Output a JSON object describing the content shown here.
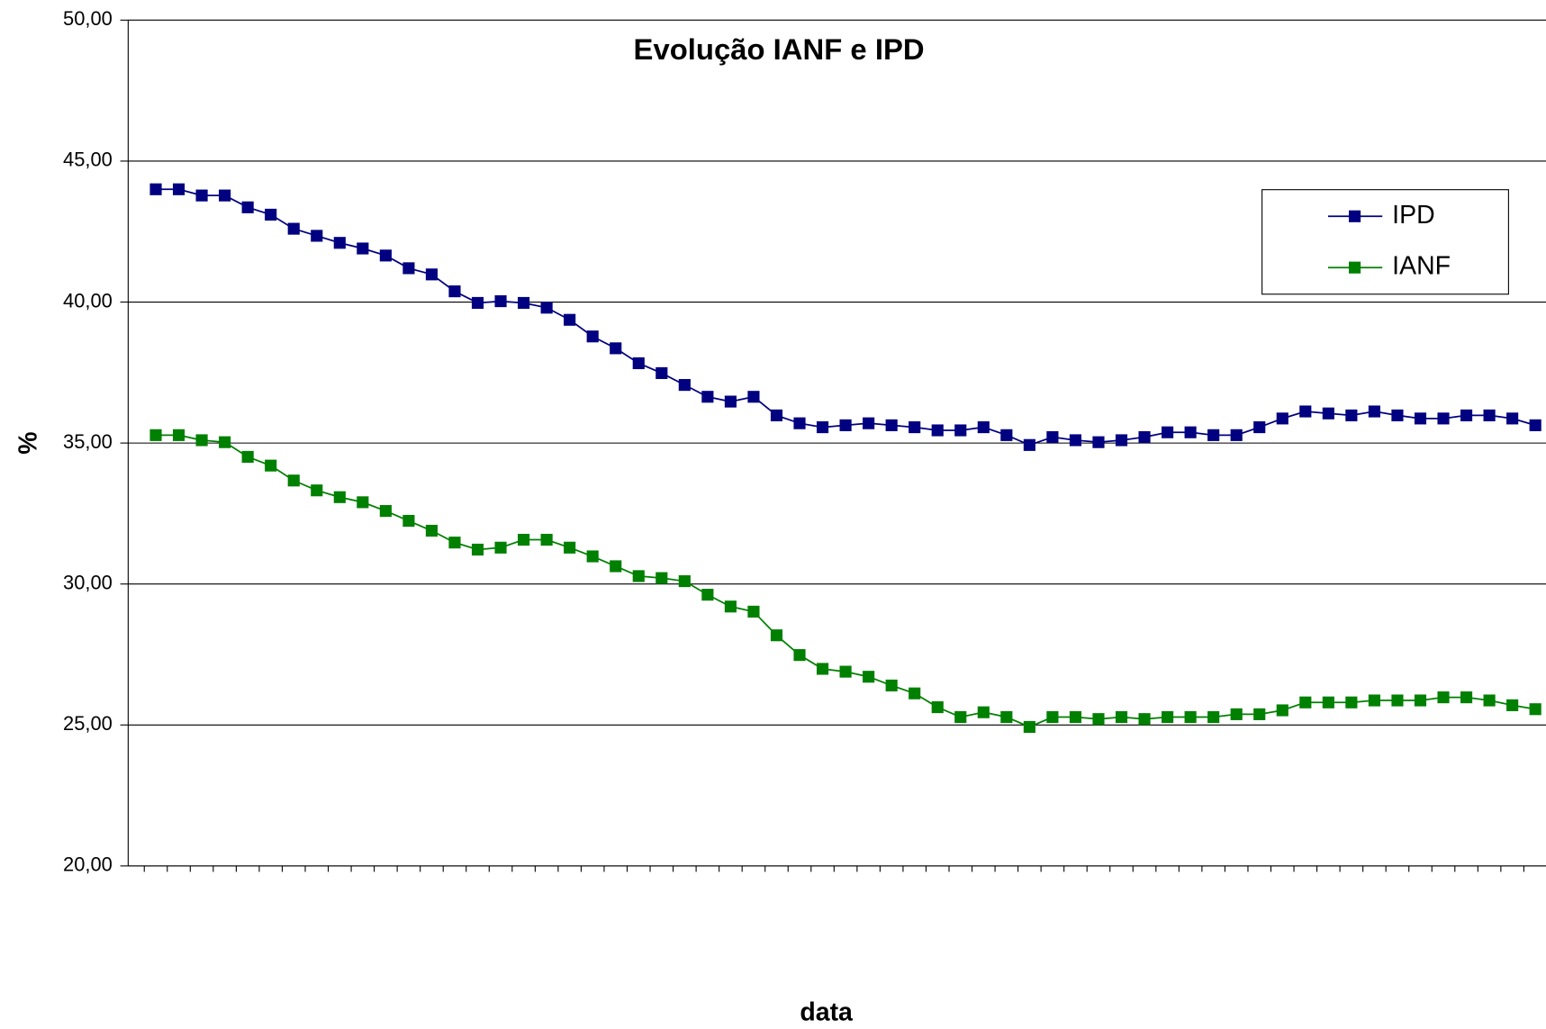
{
  "chart_data": {
    "type": "line",
    "title": "Evolução IANF e IPD",
    "x_label": "data",
    "y_label": "%",
    "categories": [
      null,
      null,
      null,
      null,
      null,
      null,
      null,
      null,
      null,
      null,
      null,
      null,
      null,
      null,
      null,
      null,
      null,
      null,
      null,
      null,
      null,
      null,
      null,
      null,
      null,
      null,
      null,
      null,
      null,
      null,
      null,
      null,
      null,
      null,
      null,
      null,
      null,
      null,
      null,
      null,
      null,
      null,
      null,
      null,
      null,
      null,
      null,
      null,
      null,
      null,
      null,
      null,
      null,
      null,
      null,
      null,
      null,
      null,
      null,
      null,
      null
    ],
    "series": [
      {
        "name": "IPD",
        "color": "#000080",
        "values": [
          44.0,
          44.0,
          43.78,
          43.78,
          43.36,
          43.1,
          42.6,
          42.35,
          42.1,
          41.9,
          41.65,
          41.2,
          40.98,
          40.38,
          39.97,
          40.03,
          39.97,
          39.8,
          39.37,
          38.78,
          38.36,
          37.83,
          37.48,
          37.06,
          36.64,
          36.47,
          36.64,
          35.98,
          35.7,
          35.56,
          35.63,
          35.7,
          35.63,
          35.56,
          35.45,
          35.45,
          35.56,
          35.28,
          34.93,
          35.21,
          35.1,
          35.03,
          35.1,
          35.21,
          35.38,
          35.38,
          35.28,
          35.28,
          35.56,
          35.87,
          36.12,
          36.05,
          35.98,
          36.12,
          35.98,
          35.87,
          35.87,
          35.98,
          35.98,
          35.87,
          35.63
        ]
      },
      {
        "name": "IANF",
        "color": "#008000",
        "values": [
          35.28,
          35.28,
          35.1,
          35.03,
          34.51,
          34.2,
          33.67,
          33.32,
          33.08,
          32.9,
          32.59,
          32.24,
          31.89,
          31.47,
          31.22,
          31.29,
          31.57,
          31.57,
          31.29,
          30.98,
          30.63,
          30.28,
          30.21,
          30.1,
          29.62,
          29.2,
          29.02,
          28.18,
          27.48,
          26.99,
          26.89,
          26.71,
          26.4,
          26.12,
          25.63,
          25.28,
          25.45,
          25.28,
          24.93,
          25.28,
          25.28,
          25.21,
          25.28,
          25.21,
          25.28,
          25.28,
          25.28,
          25.38,
          25.38,
          25.52,
          25.8,
          25.8,
          25.8,
          25.87,
          25.87,
          25.87,
          25.98,
          25.98,
          25.87,
          25.7,
          25.56
        ]
      }
    ],
    "ylim": [
      20,
      50
    ],
    "yticks": [
      {
        "value": 20,
        "label": "20,00"
      },
      {
        "value": 25,
        "label": "25,00"
      },
      {
        "value": 30,
        "label": "30,00"
      },
      {
        "value": 35,
        "label": "35,00"
      },
      {
        "value": 40,
        "label": "40,00"
      },
      {
        "value": 45,
        "label": "45,00"
      },
      {
        "value": 50,
        "label": "50,00"
      }
    ],
    "grid": true,
    "legend": "upper right",
    "marker": "square"
  }
}
